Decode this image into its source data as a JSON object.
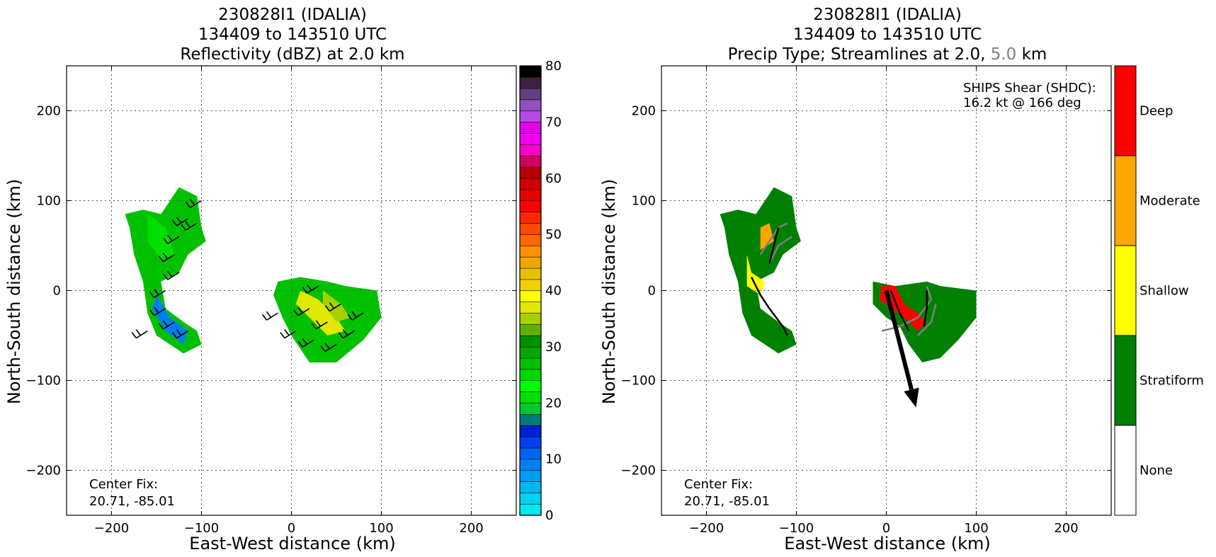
{
  "chart_data": [
    {
      "type": "heatmap",
      "title_lines": [
        "230828I1 (IDALIA)",
        "134409 to 143510 UTC",
        "Reflectivity (dBZ) at 2.0 km"
      ],
      "xlabel": "East-West distance (km)",
      "ylabel": "North-South distance (km)",
      "xlim": [
        -250,
        250
      ],
      "ylim": [
        -250,
        250
      ],
      "x_ticks": [
        -200,
        -100,
        0,
        100,
        200
      ],
      "x_tick_labels": [
        "−200",
        "−100",
        "0",
        "100",
        "200"
      ],
      "y_ticks": [
        -200,
        -100,
        0,
        100,
        200
      ],
      "y_tick_labels": [
        "−200",
        "−100",
        "0",
        "100",
        "200"
      ],
      "grid": true,
      "annotation_lines": [
        "Center Fix:",
        "20.71, -85.01"
      ],
      "colorbar": {
        "ticks": [
          0,
          10,
          20,
          30,
          40,
          50,
          60,
          70,
          80
        ],
        "tick_labels": [
          "0",
          "10",
          "20",
          "30",
          "40",
          "50",
          "60",
          "70",
          "80"
        ],
        "colors": [
          "#00e8f0",
          "#00d2f0",
          "#00b8f0",
          "#009cf0",
          "#0080f0",
          "#0064f0",
          "#0040f0",
          "#0020d0",
          "#007878",
          "#00c830",
          "#00e000",
          "#00ff00",
          "#00d800",
          "#00c000",
          "#00a800",
          "#009000",
          "#60b000",
          "#a8d000",
          "#e0e800",
          "#ffff00",
          "#f0d000",
          "#e8c000",
          "#f0a800",
          "#ff9000",
          "#ff6800",
          "#ff4800",
          "#ff2800",
          "#ff0000",
          "#e80000",
          "#d00000",
          "#b80000",
          "#d00060",
          "#ff00c8",
          "#f000f0",
          "#e000e8",
          "#b848e8",
          "#9050c0",
          "#604080",
          "#402040",
          "#000000"
        ]
      },
      "echo_regions": [
        {
          "points": [
            [
              -185,
              85
            ],
            [
              -165,
              90
            ],
            [
              -145,
              85
            ],
            [
              -125,
              115
            ],
            [
              -105,
              105
            ],
            [
              -100,
              70
            ],
            [
              -95,
              55
            ],
            [
              -115,
              40
            ],
            [
              -125,
              20
            ],
            [
              -145,
              10
            ],
            [
              -140,
              -20
            ],
            [
              -120,
              -35
            ],
            [
              -105,
              -45
            ],
            [
              -100,
              -60
            ],
            [
              -120,
              -70
            ],
            [
              -150,
              -50
            ],
            [
              -160,
              -25
            ],
            [
              -165,
              10
            ],
            [
              -175,
              40
            ],
            [
              -180,
              70
            ]
          ],
          "color": "#00c000"
        },
        {
          "points": [
            [
              -15,
              10
            ],
            [
              10,
              15
            ],
            [
              40,
              10
            ],
            [
              60,
              5
            ],
            [
              95,
              0
            ],
            [
              100,
              -30
            ],
            [
              80,
              -55
            ],
            [
              50,
              -80
            ],
            [
              20,
              -80
            ],
            [
              0,
              -50
            ],
            [
              -10,
              -30
            ],
            [
              -20,
              -5
            ]
          ],
          "color": "#00c000"
        },
        {
          "points": [
            [
              -160,
              85
            ],
            [
              -140,
              70
            ],
            [
              -130,
              40
            ],
            [
              -145,
              35
            ],
            [
              -160,
              55
            ]
          ],
          "color": "#00e000"
        },
        {
          "points": [
            [
              -150,
              -5
            ],
            [
              -135,
              -30
            ],
            [
              -115,
              -45
            ],
            [
              -120,
              -60
            ],
            [
              -140,
              -45
            ],
            [
              -155,
              -20
            ]
          ],
          "color": "#0080f0"
        },
        {
          "points": [
            [
              10,
              0
            ],
            [
              30,
              -10
            ],
            [
              50,
              -30
            ],
            [
              60,
              -45
            ],
            [
              40,
              -50
            ],
            [
              20,
              -30
            ],
            [
              5,
              -15
            ]
          ],
          "color": "#e0e800"
        },
        {
          "points": [
            [
              35,
              0
            ],
            [
              55,
              -15
            ],
            [
              65,
              -30
            ],
            [
              50,
              -35
            ],
            [
              35,
              -15
            ]
          ],
          "color": "#a8d000"
        }
      ],
      "barbs": [
        {
          "x": -115,
          "y": 80
        },
        {
          "x": -125,
          "y": 60
        },
        {
          "x": -130,
          "y": 40
        },
        {
          "x": -125,
          "y": 20
        },
        {
          "x": -140,
          "y": 0
        },
        {
          "x": -140,
          "y": -20
        },
        {
          "x": -130,
          "y": -35
        },
        {
          "x": -115,
          "y": -45
        },
        {
          "x": -100,
          "y": 100
        },
        {
          "x": -105,
          "y": 75
        },
        {
          "x": -160,
          "y": -45
        },
        {
          "x": -15,
          "y": -25
        },
        {
          "x": 5,
          "y": -45
        },
        {
          "x": 20,
          "y": -20
        },
        {
          "x": 25,
          "y": -55
        },
        {
          "x": 40,
          "y": -35
        },
        {
          "x": 50,
          "y": -60
        },
        {
          "x": 55,
          "y": -15
        },
        {
          "x": 70,
          "y": -45
        },
        {
          "x": 80,
          "y": -25
        },
        {
          "x": 30,
          "y": 5
        }
      ]
    },
    {
      "type": "heatmap",
      "title_lines": [
        "230828I1 (IDALIA)",
        "134409 to 143510 UTC"
      ],
      "title_line3": {
        "part1": "Precip Type; Streamlines at 2.0, ",
        "part2": "5.0",
        "part3": " km"
      },
      "xlabel": "East-West distance (km)",
      "ylabel": "North-South distance (km)",
      "xlim": [
        -250,
        250
      ],
      "ylim": [
        -250,
        250
      ],
      "x_ticks": [
        -200,
        -100,
        0,
        100,
        200
      ],
      "x_tick_labels": [
        "−200",
        "−100",
        "0",
        "100",
        "200"
      ],
      "y_ticks": [
        -200,
        -100,
        0,
        100,
        200
      ],
      "y_tick_labels": [
        "−200",
        "−100",
        "0",
        "100",
        "200"
      ],
      "grid": true,
      "annotation_lines": [
        "Center Fix:",
        "20.71, -85.01"
      ],
      "shear_lines": [
        "SHIPS Shear (SHDC):",
        "16.2 kt @ 166 deg"
      ],
      "shear_arrow": {
        "from": [
          0,
          0
        ],
        "to": [
          33,
          -130
        ]
      },
      "colorbar": {
        "categories": [
          "None",
          "Stratiform",
          "Shallow",
          "Moderate",
          "Deep"
        ],
        "colors": [
          "#ffffff",
          "#008000",
          "#ffff00",
          "#ffa500",
          "#ff0000"
        ]
      },
      "precip_regions": [
        {
          "points": [
            [
              -185,
              85
            ],
            [
              -165,
              90
            ],
            [
              -145,
              85
            ],
            [
              -125,
              115
            ],
            [
              -105,
              105
            ],
            [
              -100,
              70
            ],
            [
              -95,
              55
            ],
            [
              -115,
              40
            ],
            [
              -125,
              20
            ],
            [
              -145,
              10
            ],
            [
              -140,
              -20
            ],
            [
              -120,
              -35
            ],
            [
              -105,
              -45
            ],
            [
              -100,
              -60
            ],
            [
              -120,
              -70
            ],
            [
              -150,
              -50
            ],
            [
              -160,
              -25
            ],
            [
              -165,
              10
            ],
            [
              -175,
              40
            ],
            [
              -180,
              70
            ]
          ],
          "color": "#008000"
        },
        {
          "points": [
            [
              -15,
              10
            ],
            [
              10,
              5
            ],
            [
              45,
              10
            ],
            [
              60,
              5
            ],
            [
              100,
              0
            ],
            [
              100,
              -30
            ],
            [
              80,
              -55
            ],
            [
              60,
              -75
            ],
            [
              40,
              -80
            ],
            [
              25,
              -60
            ],
            [
              15,
              -40
            ],
            [
              0,
              -30
            ],
            [
              -15,
              -15
            ]
          ],
          "color": "#008000"
        },
        {
          "points": [
            [
              -155,
              40
            ],
            [
              -150,
              20
            ],
            [
              -135,
              10
            ],
            [
              -140,
              -5
            ],
            [
              -155,
              5
            ]
          ],
          "color": "#ffff00"
        },
        {
          "points": [
            [
              -140,
              70
            ],
            [
              -130,
              75
            ],
            [
              -125,
              55
            ],
            [
              -140,
              45
            ]
          ],
          "color": "#ffa500"
        },
        {
          "points": [
            [
              -5,
              5
            ],
            [
              10,
              5
            ],
            [
              20,
              -15
            ],
            [
              35,
              -25
            ],
            [
              45,
              -35
            ],
            [
              35,
              -45
            ],
            [
              20,
              -30
            ],
            [
              5,
              -20
            ],
            [
              -8,
              -10
            ]
          ],
          "color": "#ff0000"
        }
      ],
      "streamlines_black": [
        [
          [
            -150,
            15
          ],
          [
            -140,
            -5
          ],
          [
            -130,
            -20
          ],
          [
            -115,
            -40
          ],
          [
            -110,
            -50
          ]
        ],
        [
          [
            -130,
            30
          ],
          [
            -125,
            50
          ],
          [
            -120,
            70
          ]
        ],
        [
          [
            5,
            0
          ],
          [
            15,
            -25
          ],
          [
            25,
            -45
          ]
        ],
        [
          [
            45,
            0
          ],
          [
            45,
            -20
          ],
          [
            42,
            -40
          ]
        ]
      ],
      "streamlines_gray": [
        [
          [
            -140,
            40
          ],
          [
            -130,
            55
          ],
          [
            -120,
            70
          ],
          [
            -110,
            75
          ]
        ],
        [
          [
            -130,
            30
          ],
          [
            -120,
            50
          ],
          [
            -105,
            60
          ]
        ],
        [
          [
            -5,
            -45
          ],
          [
            15,
            -40
          ],
          [
            35,
            -30
          ],
          [
            50,
            -10
          ],
          [
            45,
            5
          ]
        ],
        [
          [
            35,
            -50
          ],
          [
            50,
            -35
          ],
          [
            55,
            -15
          ]
        ]
      ]
    }
  ]
}
